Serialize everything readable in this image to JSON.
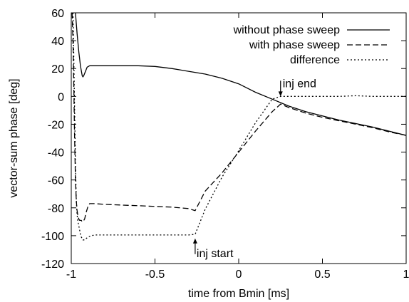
{
  "chart_data": {
    "type": "line",
    "title": "",
    "xlabel": "time from Bmin [ms]",
    "ylabel": "vector-sum phase [deg]",
    "xlim": [
      -1,
      1
    ],
    "ylim": [
      -120,
      60
    ],
    "xticks": [
      -1,
      -0.5,
      0,
      0.5,
      1
    ],
    "xtick_labels": [
      "-1",
      "-0.5",
      "0",
      "0.5",
      "1"
    ],
    "yticks": [
      -120,
      -100,
      -80,
      -60,
      -40,
      -20,
      0,
      20,
      40,
      60
    ],
    "ytick_labels": [
      "-120",
      "-100",
      "-80",
      "-60",
      "-40",
      "-20",
      "0",
      "20",
      "40",
      "60"
    ],
    "grid": false,
    "legend_position": "top-right",
    "series": [
      {
        "name": "without phase sweep",
        "dash": "solid",
        "x": [
          -0.975,
          -0.965,
          -0.955,
          -0.945,
          -0.935,
          -0.93,
          -0.925,
          -0.915,
          -0.905,
          -0.89,
          -0.87,
          -0.85,
          -0.8,
          -0.7,
          -0.6,
          -0.5,
          -0.4,
          -0.3,
          -0.2,
          -0.1,
          0.0,
          0.1,
          0.2,
          0.25,
          0.3,
          0.4,
          0.5,
          0.6,
          0.7,
          0.8,
          0.9,
          1.0
        ],
        "y": [
          60,
          45,
          32,
          22,
          15,
          14,
          15,
          18,
          21,
          22,
          22,
          22,
          22,
          22,
          22,
          21.5,
          20,
          18,
          16,
          13,
          9,
          3,
          -2,
          -4.5,
          -7,
          -11,
          -14,
          -17,
          -19.5,
          -22,
          -25,
          -28
        ]
      },
      {
        "name": "with phase sweep",
        "dash": "longdash",
        "x": [
          -0.995,
          -0.99,
          -0.985,
          -0.98,
          -0.975,
          -0.97,
          -0.965,
          -0.96,
          -0.955,
          -0.95,
          -0.945,
          -0.94,
          -0.935,
          -0.93,
          -0.92,
          -0.91,
          -0.9,
          -0.89,
          -0.88,
          -0.86,
          -0.8,
          -0.7,
          -0.6,
          -0.5,
          -0.4,
          -0.3,
          -0.26,
          -0.2,
          -0.1,
          0.0,
          0.1,
          0.2,
          0.25,
          0.3,
          0.4,
          0.5,
          0.6,
          0.7,
          0.8,
          0.9,
          1.0
        ],
        "y": [
          60,
          40,
          10,
          -30,
          -60,
          -75,
          -82,
          -86,
          -88,
          -89,
          -89,
          -89,
          -90,
          -90,
          -88,
          -83,
          -79,
          -77,
          -77,
          -77,
          -77.5,
          -78,
          -78.5,
          -79,
          -79.5,
          -80.5,
          -82,
          -68,
          -55,
          -40,
          -25,
          -11,
          -5.5,
          -8,
          -12,
          -15,
          -17.5,
          -20,
          -22.5,
          -25.5,
          -28
        ]
      },
      {
        "name": "difference",
        "dash": "dotted",
        "x": [
          -0.99,
          -0.985,
          -0.98,
          -0.975,
          -0.97,
          -0.965,
          -0.96,
          -0.955,
          -0.95,
          -0.945,
          -0.94,
          -0.935,
          -0.93,
          -0.92,
          -0.91,
          -0.9,
          -0.88,
          -0.86,
          -0.8,
          -0.7,
          -0.6,
          -0.5,
          -0.4,
          -0.3,
          -0.26,
          -0.2,
          -0.1,
          0.0,
          0.1,
          0.2,
          0.25,
          0.27,
          0.3,
          0.4,
          0.5,
          0.6,
          0.7,
          0.8,
          0.9,
          1.0
        ],
        "y": [
          60,
          30,
          -10,
          -50,
          -75,
          -85,
          -90,
          -93,
          -96,
          -99,
          -101,
          -102,
          -103,
          -103,
          -102,
          -101,
          -100,
          -99.5,
          -99.5,
          -99.5,
          -99.5,
          -99.5,
          -99.5,
          -99.5,
          -99,
          -81,
          -58,
          -39,
          -19,
          -2,
          0,
          0,
          0,
          0,
          0,
          0,
          0.5,
          0,
          0,
          0
        ]
      }
    ],
    "annotations": [
      {
        "text": "inj start",
        "x": -0.26,
        "y": -102,
        "arrow": "up"
      },
      {
        "text": "inj end",
        "x": 0.25,
        "y": 0,
        "arrow": "down"
      }
    ]
  }
}
